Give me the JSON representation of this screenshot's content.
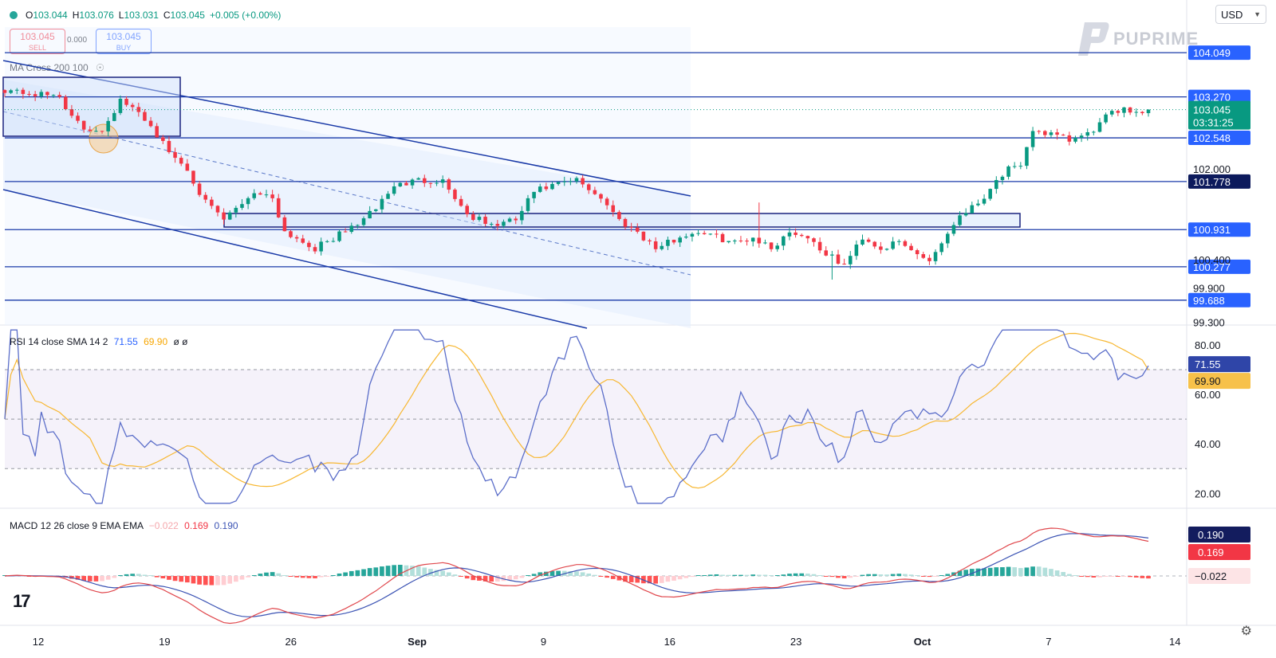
{
  "header": {
    "ohlc": [
      {
        "label": "O",
        "value": "103.044"
      },
      {
        "label": "H",
        "value": "103.076"
      },
      {
        "label": "L",
        "value": "103.031"
      },
      {
        "label": "C",
        "value": "103.045"
      }
    ],
    "change": "+0.005 (+0.00%)"
  },
  "trade": {
    "sell_price": "103.045",
    "sell_label": "SELL",
    "spread": "0.000",
    "buy_price": "103.045",
    "buy_label": "BUY"
  },
  "currency": "USD",
  "logo_text": "PUPRIME",
  "overlay_label": "MA Cross 200 100",
  "rsi_label": {
    "name": "RSI 14 close SMA 14 2",
    "v1": "71.55",
    "v2": "69.90",
    "v3": "ø ø"
  },
  "macd_label": {
    "name": "MACD 12 26 close 9 EMA EMA",
    "hist": "−0.022",
    "macd": "0.169",
    "signal": "0.190"
  },
  "colors": {
    "up": "#089981",
    "down": "#f23645",
    "level": "#1a3aa8",
    "rsi": "#5b6ec9",
    "rsi_ma": "#f7b731",
    "macd": "#e0474c",
    "signal": "#3c54b4",
    "accent": "#2962ff"
  },
  "chart_data": [
    {
      "type": "candlestick",
      "x_ticks": [
        "12",
        "19",
        "26",
        "Sep",
        "9",
        "16",
        "23",
        "Oct",
        "7",
        "14"
      ],
      "y_ticks": [
        "102.000",
        "100.400",
        "99.900",
        "99.300"
      ],
      "price_levels": [
        "104.049",
        "103.270",
        "102.548",
        "101.778",
        "100.931",
        "100.277",
        "99.688"
      ],
      "last_price": "103.045",
      "countdown": "03:31:25",
      "ylim": [
        99.25,
        104.5
      ],
      "anchors": [
        [
          0,
          103.4
        ],
        [
          6,
          103.3
        ],
        [
          9,
          103.3
        ],
        [
          11,
          102.9
        ],
        [
          13,
          102.7
        ],
        [
          16,
          102.7
        ],
        [
          19,
          103.2
        ],
        [
          23,
          102.9
        ],
        [
          27,
          102.3
        ],
        [
          30,
          102.0
        ],
        [
          33,
          101.4
        ],
        [
          36,
          101.1
        ],
        [
          41,
          101.6
        ],
        [
          44,
          101.5
        ],
        [
          46,
          100.9
        ],
        [
          51,
          100.6
        ],
        [
          56,
          100.9
        ],
        [
          60,
          101.2
        ],
        [
          64,
          101.7
        ],
        [
          68,
          101.8
        ],
        [
          72,
          101.8
        ],
        [
          76,
          101.2
        ],
        [
          80,
          101.0
        ],
        [
          84,
          101.1
        ],
        [
          87,
          101.6
        ],
        [
          90,
          101.7
        ],
        [
          94,
          101.8
        ],
        [
          98,
          101.5
        ],
        [
          101,
          101.1
        ],
        [
          104,
          100.9
        ],
        [
          107,
          100.6
        ],
        [
          111,
          100.8
        ],
        [
          114,
          100.9
        ],
        [
          117,
          100.8
        ],
        [
          120,
          100.7
        ],
        [
          123,
          100.8
        ],
        [
          126,
          100.6
        ],
        [
          129,
          100.9
        ],
        [
          132,
          100.8
        ],
        [
          135,
          100.5
        ],
        [
          138,
          100.3
        ],
        [
          141,
          100.8
        ],
        [
          144,
          100.6
        ],
        [
          147,
          100.7
        ],
        [
          150,
          100.5
        ],
        [
          152,
          100.4
        ],
        [
          154,
          100.7
        ],
        [
          157,
          101.2
        ],
        [
          160,
          101.4
        ],
        [
          163,
          101.8
        ],
        [
          165,
          102.0
        ],
        [
          167,
          102.0
        ],
        [
          169,
          102.7
        ],
        [
          172,
          102.6
        ],
        [
          175,
          102.5
        ],
        [
          178,
          102.6
        ],
        [
          181,
          102.9
        ],
        [
          184,
          103.1
        ],
        [
          186,
          103.0
        ],
        [
          188,
          103.045
        ]
      ],
      "n_candles": 189
    },
    {
      "type": "line",
      "title": "RSI",
      "y_ticks": [
        "80.00",
        "60.00",
        "40.00",
        "20.00"
      ],
      "bands": [
        30,
        50,
        70
      ],
      "ylim": [
        14,
        88
      ],
      "current": {
        "rsi": "71.55",
        "sma": "69.90"
      }
    },
    {
      "type": "bar",
      "title": "MACD",
      "current": {
        "signal": "0.190",
        "macd": "0.169",
        "hist": "−0.022"
      }
    }
  ]
}
